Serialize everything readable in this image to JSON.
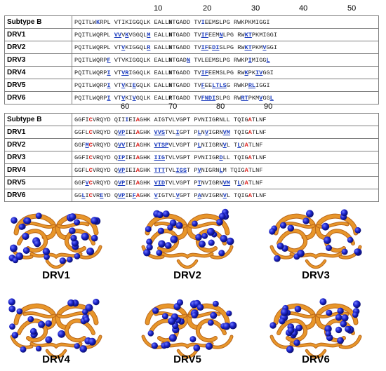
{
  "ruler1": [
    "10",
    "20",
    "30",
    "40",
    "50"
  ],
  "ruler2": [
    "60",
    "70",
    "80",
    "90"
  ],
  "block1": [
    {
      "label": "Subtype B",
      "segs": [
        [
          "PQITLW",
          ""
        ],
        [
          "K",
          "bl"
        ],
        [
          "RPL VTIKIGGQLK EALL",
          ""
        ],
        [
          "N",
          "k"
        ],
        [
          "TGADD TV",
          ""
        ],
        [
          "I",
          "bl"
        ],
        [
          "EEMSLPG RWKPKMIGGI",
          ""
        ]
      ]
    },
    {
      "label": "DRV1",
      "segs": [
        [
          "PQITLWQRPL ",
          ""
        ],
        [
          "VV",
          "b"
        ],
        [
          "V",
          ""
        ],
        [
          "K",
          "b"
        ],
        [
          "V",
          ""
        ],
        [
          "GGQL",
          ""
        ],
        [
          "M",
          "b"
        ],
        [
          " EALL",
          ""
        ],
        [
          "N",
          "k"
        ],
        [
          "TGADD TV",
          ""
        ],
        [
          "IF",
          "b"
        ],
        [
          "EEM",
          ""
        ],
        [
          "N",
          "b"
        ],
        [
          "LPG RW",
          ""
        ],
        [
          "KT",
          "b"
        ],
        [
          "PKMIGGI",
          ""
        ]
      ]
    },
    {
      "label": "DRV2",
      "segs": [
        [
          "PQITLWQRPL VT",
          ""
        ],
        [
          "V",
          "b"
        ],
        [
          "KIGGQL",
          ""
        ],
        [
          "R",
          "b"
        ],
        [
          " EALL",
          ""
        ],
        [
          "N",
          "k"
        ],
        [
          "TGADD TV",
          ""
        ],
        [
          "IF",
          "b"
        ],
        [
          "E",
          ""
        ],
        [
          "DI",
          "b"
        ],
        [
          "SLPG RW",
          ""
        ],
        [
          "KT",
          "b"
        ],
        [
          "PKM",
          ""
        ],
        [
          "V",
          "b"
        ],
        [
          "GGI",
          ""
        ]
      ]
    },
    {
      "label": "DRV3",
      "segs": [
        [
          "PQITLWQRP",
          ""
        ],
        [
          "F",
          "b"
        ],
        [
          " VTVKIGGQLK EALL",
          ""
        ],
        [
          "N",
          "k"
        ],
        [
          "TGAD",
          ""
        ],
        [
          "N",
          "b"
        ],
        [
          " TVLEEMSLPG RWKP",
          ""
        ],
        [
          "I",
          "b"
        ],
        [
          "MIGG",
          ""
        ],
        [
          "L",
          "b"
        ]
      ]
    },
    {
      "label": "DRV4",
      "segs": [
        [
          "PQITLWQRP",
          ""
        ],
        [
          "I",
          "b"
        ],
        [
          " VT",
          ""
        ],
        [
          "VR",
          "b"
        ],
        [
          "IGGQLK EALL",
          ""
        ],
        [
          "N",
          "k"
        ],
        [
          "TGADD TV",
          ""
        ],
        [
          "IF",
          "b"
        ],
        [
          "EEMSLPG RW",
          ""
        ],
        [
          "K",
          "b"
        ],
        [
          "PK",
          ""
        ],
        [
          "IV",
          "b"
        ],
        [
          "GGI",
          ""
        ]
      ]
    },
    {
      "label": "DRV5",
      "segs": [
        [
          "PQITLWQRP",
          ""
        ],
        [
          "I",
          "b"
        ],
        [
          " VT",
          ""
        ],
        [
          "V",
          "b"
        ],
        [
          "KI",
          ""
        ],
        [
          "E",
          "b"
        ],
        [
          "GQLK EALL",
          ""
        ],
        [
          "N",
          "k"
        ],
        [
          "TGADD TV",
          ""
        ],
        [
          "F",
          "b"
        ],
        [
          "EE",
          ""
        ],
        [
          "LTLS",
          "b"
        ],
        [
          "G RWKP",
          ""
        ],
        [
          "RL",
          "b"
        ],
        [
          "IGGI",
          ""
        ]
      ]
    },
    {
      "label": "DRV6",
      "segs": [
        [
          "PQITLWQRP",
          ""
        ],
        [
          "I",
          "b"
        ],
        [
          " VT",
          ""
        ],
        [
          "V",
          "b"
        ],
        [
          "KI",
          ""
        ],
        [
          "V",
          "b"
        ],
        [
          "GQLK EALL",
          ""
        ],
        [
          "R",
          "k"
        ],
        [
          "TGADD TV",
          ""
        ],
        [
          "FNDI",
          "b"
        ],
        [
          "SLPG RW",
          ""
        ],
        [
          "RT",
          "b"
        ],
        [
          "PKM",
          ""
        ],
        [
          "V",
          "b"
        ],
        [
          "GG",
          ""
        ],
        [
          "L",
          "b"
        ]
      ]
    }
  ],
  "block2": [
    {
      "label": "Subtype B",
      "segs": [
        [
          "GGFI",
          ""
        ],
        [
          "C",
          "r"
        ],
        [
          "VRQYD QII",
          ""
        ],
        [
          "I",
          "bl"
        ],
        [
          "EI",
          ""
        ],
        [
          "A",
          "r"
        ],
        [
          "GHK AIGTVLVGPT PVNIIGRNLL TQIG",
          ""
        ],
        [
          "A",
          "r"
        ],
        [
          "TLNF",
          ""
        ]
      ]
    },
    {
      "label": "DRV1",
      "segs": [
        [
          "GGFL",
          ""
        ],
        [
          "C",
          "r"
        ],
        [
          "VRQYD Q",
          ""
        ],
        [
          "VP",
          "b"
        ],
        [
          "IEI",
          ""
        ],
        [
          "A",
          "r"
        ],
        [
          "GHK ",
          ""
        ],
        [
          "VVS",
          "b"
        ],
        [
          "TVL",
          ""
        ],
        [
          "I",
          "b"
        ],
        [
          "GPT P",
          ""
        ],
        [
          "L",
          "b"
        ],
        [
          "N",
          ""
        ],
        [
          "V",
          "b"
        ],
        [
          "IGRN",
          ""
        ],
        [
          "VM",
          "b"
        ],
        [
          " TQIG",
          ""
        ],
        [
          "A",
          "r"
        ],
        [
          "TLNF",
          ""
        ]
      ]
    },
    {
      "label": "DRV2",
      "segs": [
        [
          "GGF",
          ""
        ],
        [
          "M",
          "b"
        ],
        [
          "C",
          "r"
        ],
        [
          "VRQYD Q",
          ""
        ],
        [
          "VV",
          "b"
        ],
        [
          "IEI",
          ""
        ],
        [
          "A",
          "r"
        ],
        [
          "GHK ",
          ""
        ],
        [
          "VTSP",
          "b"
        ],
        [
          "VLVGPT P",
          ""
        ],
        [
          "L",
          "b"
        ],
        [
          "NIIGRN",
          ""
        ],
        [
          "V",
          "b"
        ],
        [
          "L T",
          ""
        ],
        [
          "L",
          "b"
        ],
        [
          "G",
          ""
        ],
        [
          "A",
          "r"
        ],
        [
          "TLNF",
          ""
        ]
      ]
    },
    {
      "label": "DRV3",
      "segs": [
        [
          "GGFI",
          ""
        ],
        [
          "C",
          "r"
        ],
        [
          "VRQYD Q",
          ""
        ],
        [
          "IP",
          "b"
        ],
        [
          "IEI",
          ""
        ],
        [
          "A",
          "r"
        ],
        [
          "GHK ",
          ""
        ],
        [
          "IIG",
          "b"
        ],
        [
          "TVLVGPT PVNIIGR",
          ""
        ],
        [
          "D",
          "b"
        ],
        [
          "LL TQIG",
          ""
        ],
        [
          "A",
          "r"
        ],
        [
          "TLNF",
          ""
        ]
      ]
    },
    {
      "label": "DRV4",
      "segs": [
        [
          "GGFL",
          ""
        ],
        [
          "C",
          "r"
        ],
        [
          "VRQYD Q",
          ""
        ],
        [
          "VP",
          "b"
        ],
        [
          "IEI",
          ""
        ],
        [
          "A",
          "r"
        ],
        [
          "GHK ",
          ""
        ],
        [
          "TTT",
          "b"
        ],
        [
          "TVL",
          ""
        ],
        [
          "IGS",
          "b"
        ],
        [
          "T P",
          ""
        ],
        [
          "V",
          "b"
        ],
        [
          "NIGRN",
          ""
        ],
        [
          "L",
          "b"
        ],
        [
          "M TQIG",
          ""
        ],
        [
          "A",
          "r"
        ],
        [
          "TLNF",
          ""
        ]
      ]
    },
    {
      "label": "DRV5",
      "segs": [
        [
          "GGF",
          ""
        ],
        [
          "V",
          "b"
        ],
        [
          "C",
          "r"
        ],
        [
          "VRQYD Q",
          ""
        ],
        [
          "VP",
          "b"
        ],
        [
          "IEI",
          ""
        ],
        [
          "A",
          "r"
        ],
        [
          "GHK ",
          ""
        ],
        [
          "VID",
          "b"
        ],
        [
          "TVLVGPT P",
          ""
        ],
        [
          "T",
          "b"
        ],
        [
          "NVIGRN",
          ""
        ],
        [
          "VM",
          "b"
        ],
        [
          " T",
          ""
        ],
        [
          "L",
          "b"
        ],
        [
          "G",
          ""
        ],
        [
          "A",
          "r"
        ],
        [
          "TLNF",
          ""
        ]
      ]
    },
    {
      "label": "DRV6",
      "segs": [
        [
          "GG",
          ""
        ],
        [
          "L",
          "b"
        ],
        [
          "I",
          ""
        ],
        [
          "C",
          "r"
        ],
        [
          "VR",
          ""
        ],
        [
          "E",
          "b"
        ],
        [
          "YD Q",
          ""
        ],
        [
          "VP",
          "b"
        ],
        [
          "IE",
          ""
        ],
        [
          "F",
          "b"
        ],
        [
          "A",
          "r"
        ],
        [
          "GHK ",
          ""
        ],
        [
          "V",
          "b"
        ],
        [
          "IGTVL",
          ""
        ],
        [
          "V",
          "b"
        ],
        [
          "GPT P",
          ""
        ],
        [
          "A",
          "b"
        ],
        [
          "NVIGRN",
          ""
        ],
        [
          "V",
          "b"
        ],
        [
          "L TQIG",
          ""
        ],
        [
          "A",
          "r"
        ],
        [
          "TLNF",
          ""
        ]
      ]
    }
  ],
  "structures": [
    {
      "label": "DRV1",
      "balls": 31
    },
    {
      "label": "DRV2",
      "balls": 29
    },
    {
      "label": "DRV3",
      "balls": 21
    },
    {
      "label": "DRV4",
      "balls": 27
    },
    {
      "label": "DRV5",
      "balls": 30
    },
    {
      "label": "DRV6",
      "balls": 32
    }
  ],
  "colors": {
    "ribbon": "#e8962a",
    "ribbon_dark": "#b8661a",
    "ball": "#1a22c8",
    "ball_dark": "#0a0e70",
    "mut": "#1f3fbf",
    "site": "#e0201c"
  }
}
